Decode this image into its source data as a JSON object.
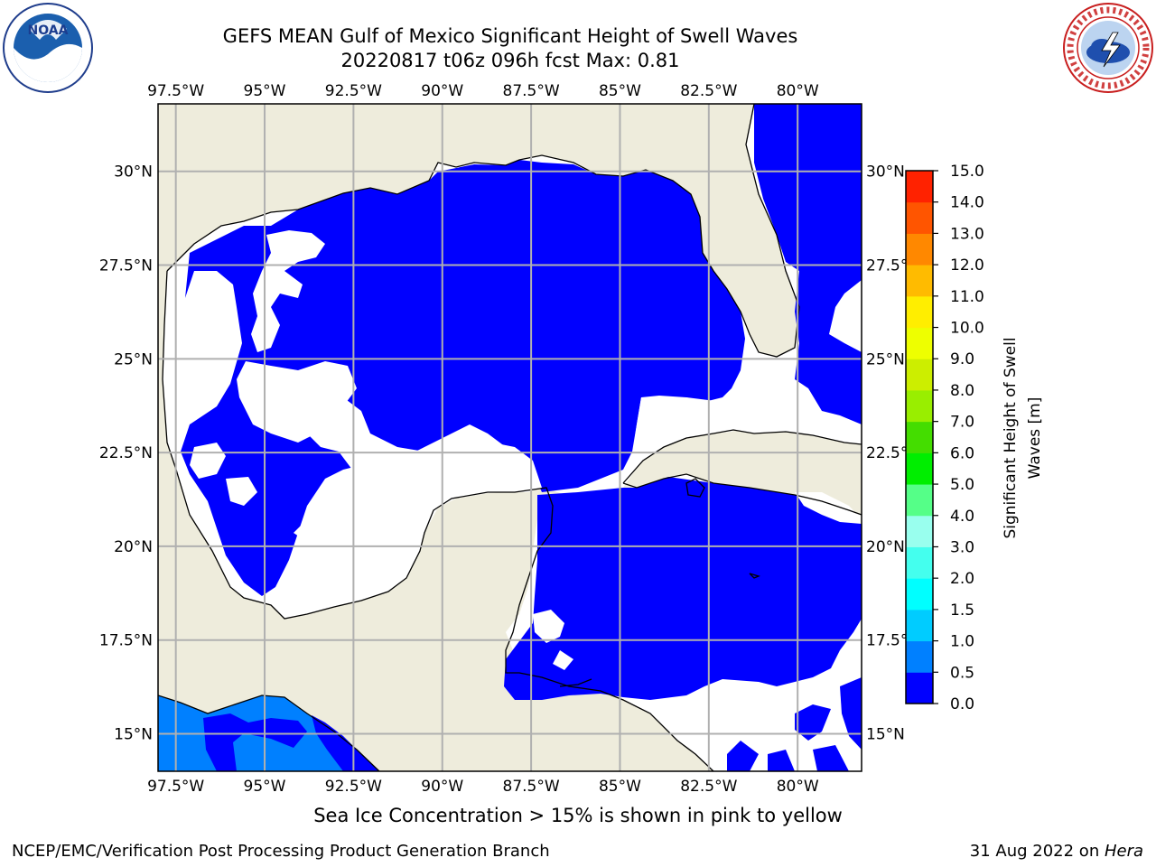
{
  "title_line1": "GEFS MEAN Gulf of Mexico Significant Height of Swell Waves",
  "title_line2": "20220817 t06z 096h fcst   Max: 0.81",
  "map": {
    "lon_labels": [
      "97.5°W",
      "95°W",
      "92.5°W",
      "90°W",
      "87.5°W",
      "85°W",
      "82.5°W",
      "80°W"
    ],
    "lat_labels": [
      "30°N",
      "27.5°N",
      "25°N",
      "22.5°N",
      "20°N",
      "17.5°N",
      "15°N"
    ],
    "lon_values": [
      -97.5,
      -95,
      -92.5,
      -90,
      -87.5,
      -85,
      -82.5,
      -80
    ],
    "lat_values": [
      30,
      27.5,
      25,
      22.5,
      20,
      17.5,
      15
    ],
    "extent": {
      "lon_min": -98,
      "lon_max": -78.2,
      "lat_min": 14,
      "lat_max": 31.8
    },
    "colors": {
      "land": "#eeecdc",
      "no_data": "#ffffff",
      "grid": "#b0b0b0",
      "coast": "#000000"
    }
  },
  "colorbar": {
    "label_line1": "Significant Height of Swell",
    "label_line2": "Waves [m]",
    "ticks": [
      "0.0",
      "0.5",
      "1.0",
      "1.5",
      "2.0",
      "3.0",
      "4.0",
      "5.0",
      "6.0",
      "7.0",
      "8.0",
      "9.0",
      "10.0",
      "11.0",
      "12.0",
      "13.0",
      "14.0",
      "15.0"
    ],
    "colors": [
      "#0000ff",
      "#0080ff",
      "#00ccff",
      "#00ffff",
      "#44ffee",
      "#99ffee",
      "#55ff88",
      "#00ee00",
      "#44dd00",
      "#99ee00",
      "#ccee00",
      "#eeff00",
      "#ffee00",
      "#ffbb00",
      "#ff8800",
      "#ff5500",
      "#ff2200"
    ]
  },
  "note": "Sea Ice Concentration > 15% is shown in pink to yellow",
  "footer": {
    "left": "NCEP/EMC/Verification Post Processing Product Generation Branch",
    "right_text": "31 Aug 2022 on ",
    "right_italic": "Hera"
  },
  "logos": {
    "left": "noaa-logo",
    "right": "nws-logo"
  }
}
